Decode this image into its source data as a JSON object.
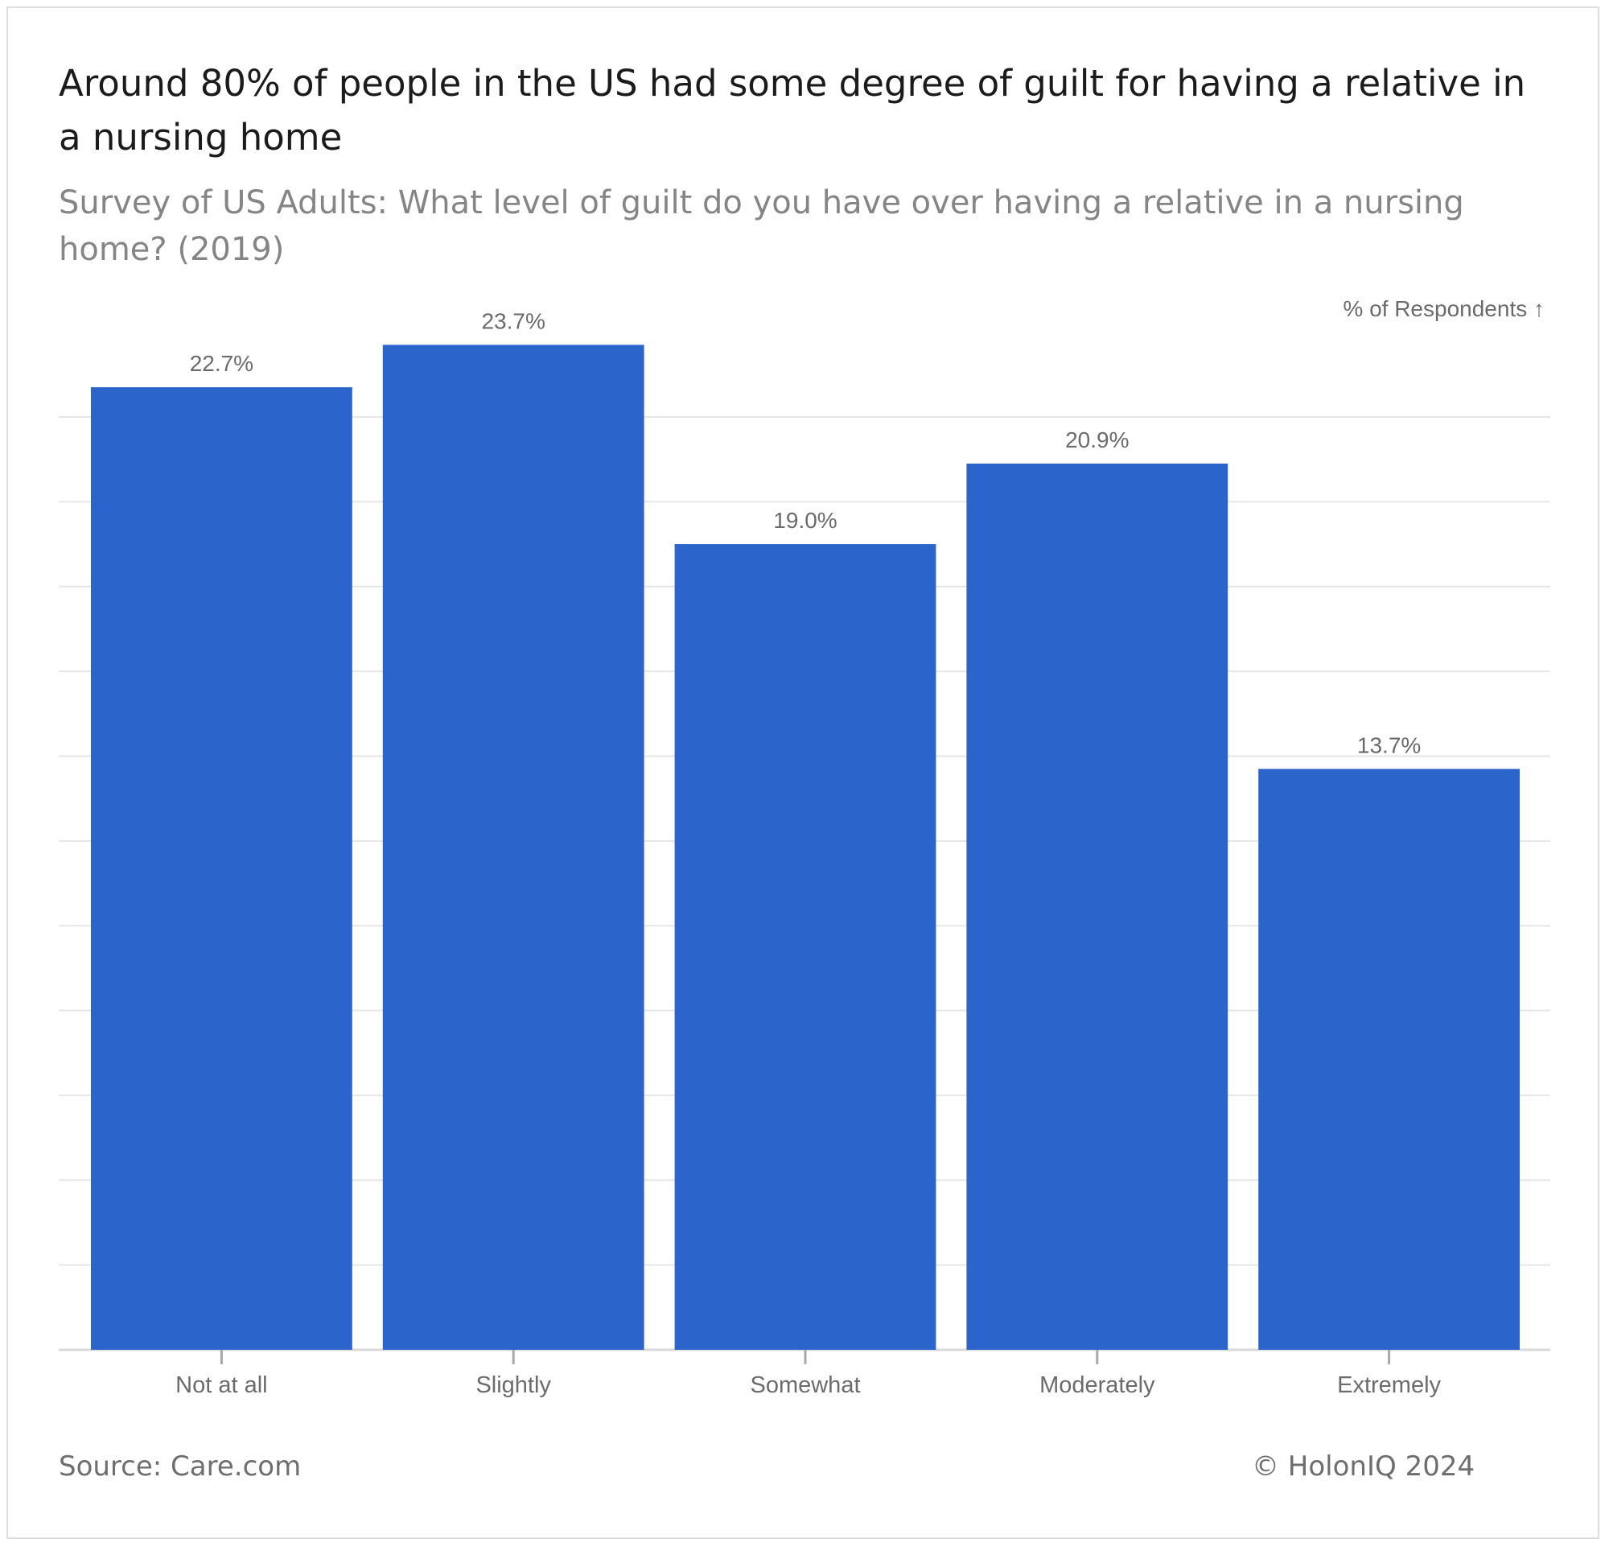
{
  "header": {
    "title": "Around 80% of people in the US had some degree of guilt for having a relative in a nursing home",
    "subtitle": "Survey of US Adults: What level of guilt do you have over having a relative in a nursing home? (2019)"
  },
  "footer": {
    "source": "Source: Care.com",
    "credit": "© HolonIQ 2024"
  },
  "chart_data": {
    "type": "bar",
    "title": "Around 80% of people in the US had some degree of guilt for having a relative in a nursing home",
    "subtitle": "Survey of US Adults: What level of guilt do you have over having a relative in a nursing home? (2019)",
    "ylabel": "% of Respondents ↑",
    "xlabel": "",
    "categories": [
      "Not at all",
      "Slightly",
      "Somewhat",
      "Moderately",
      "Extremely"
    ],
    "values": [
      22.7,
      23.7,
      19.0,
      20.9,
      13.7
    ],
    "value_labels": [
      "22.7%",
      "23.7%",
      "19.0%",
      "20.9%",
      "13.7%"
    ],
    "ylim": [
      0,
      22
    ],
    "grid": true,
    "bar_color": "#2b65cc",
    "grid_color": "#e6e6e6"
  }
}
